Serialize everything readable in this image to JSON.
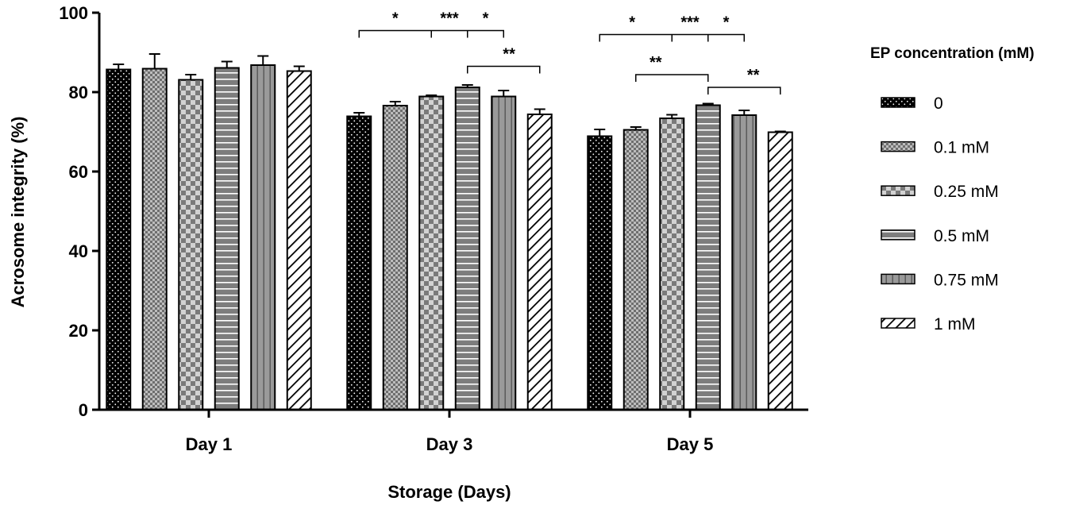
{
  "chart_data": {
    "type": "bar",
    "title": "",
    "xlabel": "Storage (Days)",
    "ylabel": "Acrosome integrity (%)",
    "ylim": [
      0,
      100
    ],
    "yticks": [
      0,
      20,
      40,
      60,
      80,
      100
    ],
    "grid": false,
    "categories": [
      "Day 1",
      "Day 3",
      "Day 5"
    ],
    "legend": {
      "title": "EP concentration (mM)",
      "placement": "right"
    },
    "series": [
      {
        "name": "0",
        "pattern": "dots",
        "values": [
          85.7,
          73.9,
          68.9
        ],
        "errors": [
          1.3,
          0.9,
          1.7
        ]
      },
      {
        "name": "0.1 mM",
        "pattern": "fine-checker",
        "values": [
          85.9,
          76.6,
          70.5
        ],
        "errors": [
          3.7,
          1.0,
          0.7
        ]
      },
      {
        "name": "0.25 mM",
        "pattern": "checker",
        "values": [
          83.1,
          78.9,
          73.4
        ],
        "errors": [
          1.3,
          0.3,
          0.9
        ]
      },
      {
        "name": "0.5 mM",
        "pattern": "horizontal-lines",
        "values": [
          86.1,
          81.2,
          76.7
        ],
        "errors": [
          1.6,
          0.6,
          0.4
        ]
      },
      {
        "name": "0.75 mM",
        "pattern": "vertical-lines",
        "values": [
          86.8,
          78.9,
          74.2
        ],
        "errors": [
          2.3,
          1.5,
          1.2
        ]
      },
      {
        "name": "1 mM",
        "pattern": "diagonal",
        "values": [
          85.3,
          74.4,
          69.9
        ],
        "errors": [
          1.2,
          1.3,
          0.2
        ]
      }
    ],
    "significance": [
      {
        "category": 1,
        "from": 0,
        "to": 4,
        "level": 95.5,
        "ticks": [
          2,
          3
        ],
        "labels": [
          {
            "text": "*",
            "between": [
              0,
              2
            ]
          },
          {
            "text": "***",
            "between": [
              2,
              3
            ]
          },
          {
            "text": "*",
            "between": [
              3,
              4
            ]
          }
        ]
      },
      {
        "category": 1,
        "from": 3,
        "to": 5,
        "level": 86.5,
        "ticks": [],
        "labels": [
          {
            "text": "**",
            "between": [
              4,
              4.3
            ]
          }
        ]
      },
      {
        "category": 2,
        "from": 0,
        "to": 4,
        "level": 94.5,
        "ticks": [
          2,
          3
        ],
        "labels": [
          {
            "text": "*",
            "between": [
              0.5,
              1.3
            ]
          },
          {
            "text": "***",
            "between": [
              2,
              3
            ]
          },
          {
            "text": "*",
            "between": [
              3,
              4
            ]
          }
        ]
      },
      {
        "category": 2,
        "from": 1,
        "to": 3,
        "level": 84.4,
        "ticks": [],
        "labels": [
          {
            "text": "**",
            "between": [
              1.5,
              1.6
            ]
          }
        ]
      },
      {
        "category": 2,
        "from": 3,
        "to": 5,
        "level": 81.2,
        "ticks": [],
        "labels": [
          {
            "text": "**",
            "between": [
              4,
              4.5
            ]
          }
        ]
      }
    ]
  }
}
